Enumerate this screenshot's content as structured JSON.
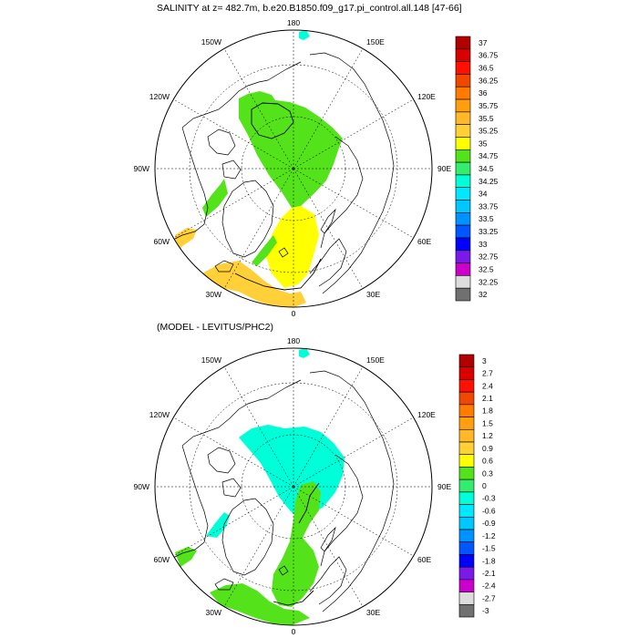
{
  "maps": [
    {
      "title": "SALINITY at z= 482.7m, b.e20.B1850.f09_g17.pi_control.all.148 [47-66]",
      "lon_labels": [
        "180",
        "150E",
        "120E",
        "90E",
        "60E",
        "30E",
        "0",
        "30W",
        "60W",
        "90W",
        "120W",
        "150W"
      ],
      "colorbar": {
        "labels": [
          "37",
          "36.75",
          "36.5",
          "36.25",
          "36",
          "35.75",
          "35.5",
          "35.25",
          "35",
          "34.75",
          "34.5",
          "34.25",
          "34",
          "33.75",
          "33.5",
          "33.25",
          "33",
          "32.75",
          "32.5",
          "32.25",
          "32"
        ],
        "colors": [
          "#b10000",
          "#d80000",
          "#ff1000",
          "#f04800",
          "#ff7c00",
          "#ff9f10",
          "#ffb828",
          "#ffd038",
          "#ffff00",
          "#54e31a",
          "#34ed6e",
          "#00ffd8",
          "#00e8ff",
          "#00c8ff",
          "#0092ff",
          "#0056ff",
          "#0000ff",
          "#7a1ae8",
          "#cc00cc",
          "#dddddd",
          "#707070"
        ]
      }
    },
    {
      "title": "(MODEL - LEVITUS/PHC2)",
      "lon_labels": [
        "180",
        "150E",
        "120E",
        "90E",
        "60E",
        "30E",
        "0",
        "30W",
        "60W",
        "90W",
        "120W",
        "150W"
      ],
      "colorbar": {
        "labels": [
          "3",
          "2.7",
          "2.4",
          "2.1",
          "1.8",
          "1.5",
          "1.2",
          "0.9",
          "0.6",
          "0.3",
          "0",
          "-0.3",
          "-0.6",
          "-0.9",
          "-1.2",
          "-1.5",
          "-1.8",
          "-2.1",
          "-2.4",
          "-2.7",
          "-3"
        ],
        "colors": [
          "#b10000",
          "#d80000",
          "#ff1000",
          "#f04800",
          "#ff7c00",
          "#ff9f10",
          "#ffb828",
          "#ffd038",
          "#ffff00",
          "#54e31a",
          "#34ed6e",
          "#00ffd8",
          "#00e8ff",
          "#00c8ff",
          "#0092ff",
          "#0056ff",
          "#0000ff",
          "#7a1ae8",
          "#cc00cc",
          "#dddddd",
          "#707070"
        ]
      }
    }
  ]
}
